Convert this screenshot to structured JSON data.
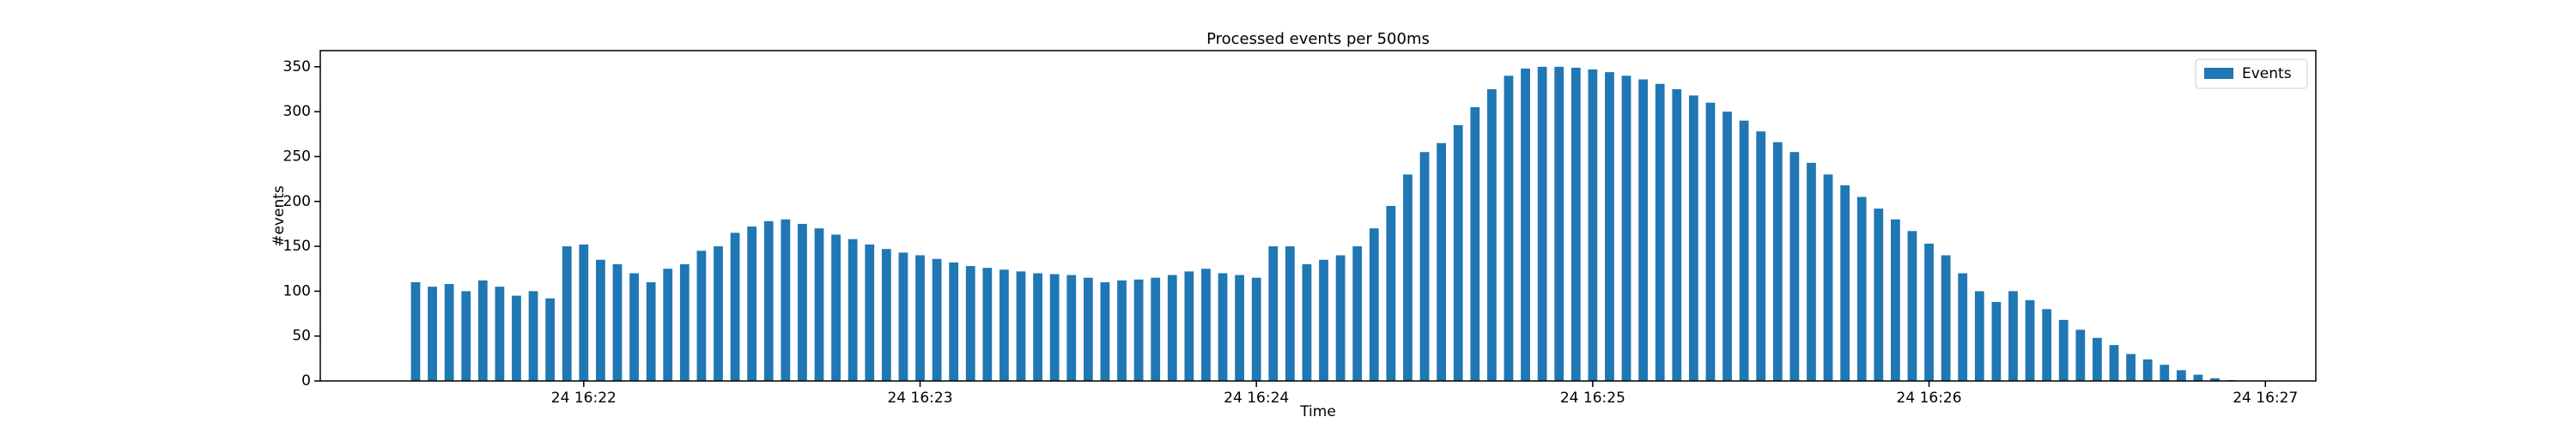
{
  "chart_data": {
    "type": "bar",
    "title": "Processed events per 500ms",
    "xlabel": "Time",
    "ylabel": "#events",
    "x": [
      "24 16:21:30",
      "24 16:21:33",
      "24 16:21:36",
      "24 16:21:39",
      "24 16:21:42",
      "24 16:21:45",
      "24 16:21:48",
      "24 16:21:51",
      "24 16:21:54",
      "24 16:21:57",
      "24 16:22:00",
      "24 16:22:03",
      "24 16:22:06",
      "24 16:22:09",
      "24 16:22:12",
      "24 16:22:15",
      "24 16:22:18",
      "24 16:22:21",
      "24 16:22:24",
      "24 16:22:27",
      "24 16:22:30",
      "24 16:22:33",
      "24 16:22:36",
      "24 16:22:39",
      "24 16:22:42",
      "24 16:22:45",
      "24 16:22:48",
      "24 16:22:51",
      "24 16:22:54",
      "24 16:22:57",
      "24 16:23:00",
      "24 16:23:03",
      "24 16:23:06",
      "24 16:23:09",
      "24 16:23:12",
      "24 16:23:15",
      "24 16:23:18",
      "24 16:23:21",
      "24 16:23:24",
      "24 16:23:27",
      "24 16:23:30",
      "24 16:23:33",
      "24 16:23:36",
      "24 16:23:39",
      "24 16:23:42",
      "24 16:23:45",
      "24 16:23:48",
      "24 16:23:51",
      "24 16:23:54",
      "24 16:23:57",
      "24 16:24:00",
      "24 16:24:03",
      "24 16:24:06",
      "24 16:24:09",
      "24 16:24:12",
      "24 16:24:15",
      "24 16:24:18",
      "24 16:24:21",
      "24 16:24:24",
      "24 16:24:27",
      "24 16:24:30",
      "24 16:24:33",
      "24 16:24:36",
      "24 16:24:39",
      "24 16:24:42",
      "24 16:24:45",
      "24 16:24:48",
      "24 16:24:51",
      "24 16:24:54",
      "24 16:24:57",
      "24 16:25:00",
      "24 16:25:03",
      "24 16:25:06",
      "24 16:25:09",
      "24 16:25:12",
      "24 16:25:15",
      "24 16:25:18",
      "24 16:25:21",
      "24 16:25:24",
      "24 16:25:27",
      "24 16:25:30",
      "24 16:25:33",
      "24 16:25:36",
      "24 16:25:39",
      "24 16:25:42",
      "24 16:25:45",
      "24 16:25:48",
      "24 16:25:51",
      "24 16:25:54",
      "24 16:25:57",
      "24 16:26:00",
      "24 16:26:03",
      "24 16:26:06",
      "24 16:26:09",
      "24 16:26:12",
      "24 16:26:15",
      "24 16:26:18",
      "24 16:26:21",
      "24 16:26:24",
      "24 16:26:27",
      "24 16:26:30",
      "24 16:26:33",
      "24 16:26:36",
      "24 16:26:39",
      "24 16:26:42",
      "24 16:26:45",
      "24 16:26:48",
      "24 16:26:51",
      "24 16:26:54"
    ],
    "series": [
      {
        "name": "Events",
        "color": "#1f77b4",
        "values": [
          110,
          105,
          108,
          100,
          112,
          105,
          95,
          100,
          92,
          150,
          152,
          135,
          130,
          120,
          110,
          125,
          130,
          145,
          150,
          165,
          172,
          178,
          180,
          175,
          170,
          163,
          158,
          152,
          147,
          143,
          140,
          136,
          132,
          128,
          126,
          124,
          122,
          120,
          119,
          118,
          115,
          110,
          112,
          113,
          115,
          118,
          122,
          125,
          120,
          118,
          115,
          150,
          150,
          130,
          135,
          140,
          150,
          170,
          195,
          230,
          255,
          265,
          285,
          305,
          325,
          340,
          348,
          350,
          350,
          349,
          347,
          344,
          340,
          336,
          331,
          325,
          318,
          310,
          300,
          290,
          278,
          266,
          255,
          243,
          230,
          218,
          205,
          192,
          180,
          167,
          153,
          140,
          120,
          100,
          88,
          100,
          90,
          80,
          68,
          57,
          48,
          40,
          30,
          24,
          18,
          12,
          7,
          3,
          1
        ]
      }
    ],
    "xlim": [
      "24 16:21:13",
      "24 16:27:09"
    ],
    "xticks": [
      "24 16:22",
      "24 16:23",
      "24 16:24",
      "24 16:25",
      "24 16:26",
      "24 16:27"
    ],
    "ylim": [
      0,
      368
    ],
    "yticks": [
      0,
      50,
      100,
      150,
      200,
      250,
      300,
      350
    ],
    "legend": "upper right"
  }
}
